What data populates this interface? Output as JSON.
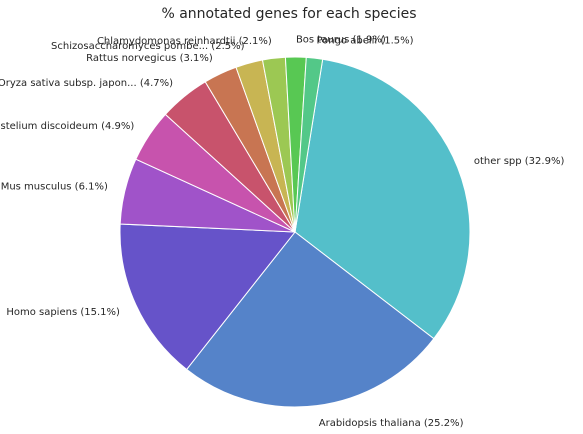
{
  "chart_data": {
    "type": "pie",
    "title": "% annotated genes for each species",
    "slices": [
      {
        "label": "other spp (32.9%)",
        "value": 32.9,
        "color": "#54bfca"
      },
      {
        "label": "Arabidopsis thaliana (25.2%)",
        "value": 25.2,
        "color": "#5583c9"
      },
      {
        "label": "Homo sapiens (15.1%)",
        "value": 15.1,
        "color": "#6653c9"
      },
      {
        "label": "Mus musculus (6.1%)",
        "value": 6.1,
        "color": "#a053c9"
      },
      {
        "label": "Dictyostelium discoideum (4.9%)",
        "value": 4.9,
        "color": "#c753ad"
      },
      {
        "label": "Oryza sativa subsp. japon... (4.7%)",
        "value": 4.7,
        "color": "#c8536c"
      },
      {
        "label": "Rattus norvegicus (3.1%)",
        "value": 3.1,
        "color": "#c87552"
      },
      {
        "label": "Schizosaccharomyces pombe... (2.5%)",
        "value": 2.5,
        "color": "#c8b553"
      },
      {
        "label": "Chlamydomonas reinhardtii (2.1%)",
        "value": 2.1,
        "color": "#9cc853"
      },
      {
        "label": "Bos taurus (1.9%)",
        "value": 1.9,
        "color": "#58c853"
      },
      {
        "label": "Pongo abelii (1.5%)",
        "value": 1.5,
        "color": "#53c888"
      }
    ],
    "start": "counterclockwise from roughly 2 o'clock, beginning with other spp",
    "legend": "none"
  }
}
